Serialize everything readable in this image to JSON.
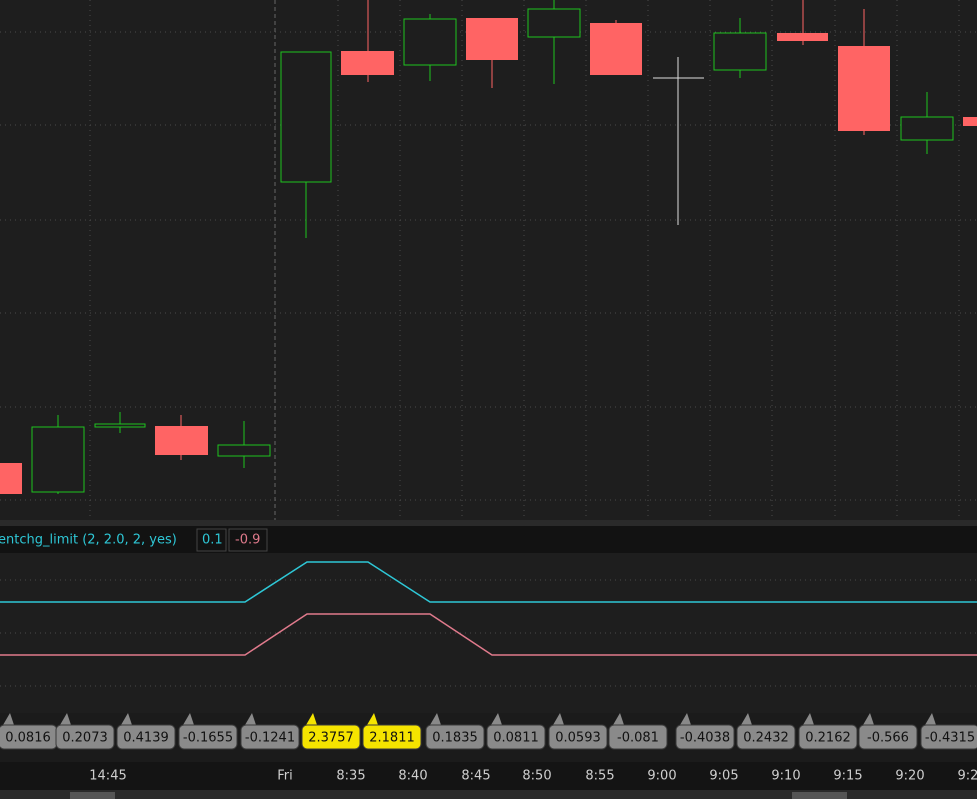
{
  "study": {
    "label": "entchg_limit (2, 2.0, 2, yes)",
    "value_1": 0.1,
    "value_2": -0.9
  },
  "bubbles": [
    {
      "text": 0.0816,
      "highlight": false
    },
    {
      "text": 0.2073,
      "highlight": false
    },
    {
      "text": 0.4139,
      "highlight": false
    },
    {
      "text": -0.1655,
      "highlight": false
    },
    {
      "text": -0.1241,
      "highlight": false
    },
    {
      "text": 2.3757,
      "highlight": true
    },
    {
      "text": 2.1811,
      "highlight": true
    },
    {
      "text": 0.1835,
      "highlight": false
    },
    {
      "text": 0.0811,
      "highlight": false
    },
    {
      "text": 0.0593,
      "highlight": false
    },
    {
      "text": -0.081,
      "highlight": false
    },
    {
      "text": -0.4038,
      "highlight": false
    },
    {
      "text": 0.2432,
      "highlight": false
    },
    {
      "text": 0.2162,
      "highlight": false
    },
    {
      "text": -0.566,
      "highlight": false
    },
    {
      "text": -0.4315,
      "highlight": false
    }
  ],
  "time_axis": [
    "14:45",
    "Fri",
    "8:35",
    "8:40",
    "8:45",
    "8:50",
    "8:55",
    "9:00",
    "9:05",
    "9:10",
    "9:15",
    "9:20",
    "9:2"
  ]
}
